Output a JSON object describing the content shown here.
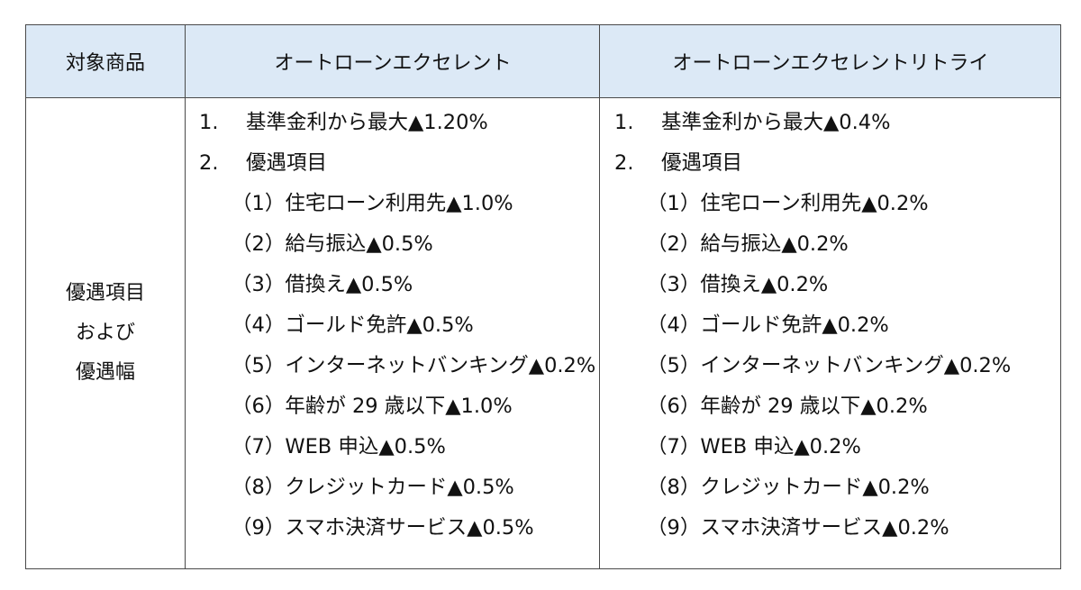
{
  "header": {
    "label": "対象商品",
    "product_a": "オートローンエクセレント",
    "product_b": "オートローンエクセレントリトライ"
  },
  "row_label": {
    "line1": "優遇項目",
    "line2": "および",
    "line3": "優遇幅"
  },
  "product_a": {
    "main": [
      {
        "num": "1.",
        "text": "基準金利から最大▲1.20%"
      },
      {
        "num": "2.",
        "text": "優遇項目"
      }
    ],
    "sub": [
      "（1）住宅ローン利用先▲1.0%",
      "（2）給与振込▲0.5%",
      "（3）借換え▲0.5%",
      "（4）ゴールド免許▲0.5%",
      "（5）インターネットバンキング▲0.2%",
      "（6）年齢が 29 歳以下▲1.0%",
      "（7）WEB 申込▲0.5%",
      "（8）クレジットカード▲0.5%",
      "（9）スマホ決済サービス▲0.5%"
    ]
  },
  "product_b": {
    "main": [
      {
        "num": "1.",
        "text": "基準金利から最大▲0.4%"
      },
      {
        "num": "2.",
        "text": "優遇項目"
      }
    ],
    "sub": [
      "（1）住宅ローン利用先▲0.2%",
      "（2）給与振込▲0.2%",
      "（3）借換え▲0.2%",
      "（4）ゴールド免許▲0.2%",
      "（5）インターネットバンキング▲0.2%",
      "（6）年齢が 29 歳以下▲0.2%",
      "（7）WEB 申込▲0.2%",
      "（8）クレジットカード▲0.2%",
      "（9）スマホ決済サービス▲0.2%"
    ]
  },
  "colors": {
    "header_bg": "#dce9f6",
    "border": "#4a4a4a",
    "text": "#111111"
  }
}
